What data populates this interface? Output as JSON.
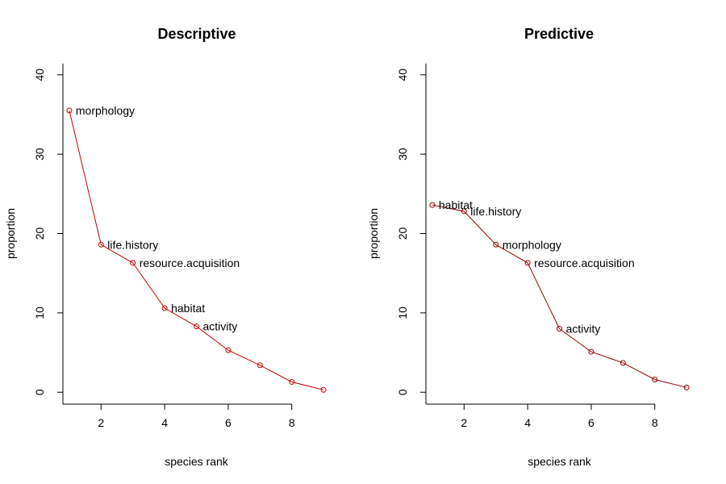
{
  "chart_data": [
    {
      "type": "line",
      "title": "Descriptive",
      "xlabel": "species rank",
      "ylabel": "proportion",
      "xlim": [
        0.8,
        9.2
      ],
      "ylim": [
        -1.5,
        41.5
      ],
      "xticks": [
        2,
        4,
        6,
        8
      ],
      "yticks": [
        0,
        10,
        20,
        30,
        40
      ],
      "grid": false,
      "series_color": "#cc0000",
      "x": [
        1,
        2,
        3,
        4,
        5,
        6,
        7,
        8,
        9
      ],
      "y": [
        35.5,
        18.6,
        16.3,
        10.6,
        8.3,
        5.3,
        3.4,
        1.3,
        0.3
      ],
      "labels": [
        "morphology",
        "life.history",
        "resource.acquisition",
        "habitat",
        "activity",
        "",
        "",
        "",
        ""
      ]
    },
    {
      "type": "line",
      "title": "Predictive",
      "xlabel": "species rank",
      "ylabel": "proportion",
      "xlim": [
        0.8,
        9.2
      ],
      "ylim": [
        -1.5,
        41.5
      ],
      "xticks": [
        2,
        4,
        6,
        8
      ],
      "yticks": [
        0,
        10,
        20,
        30,
        40
      ],
      "grid": false,
      "series_color": "#990000",
      "x": [
        1,
        2,
        3,
        4,
        5,
        6,
        7,
        8,
        9
      ],
      "y": [
        23.6,
        22.8,
        18.6,
        16.3,
        8.0,
        5.1,
        3.7,
        1.6,
        0.6
      ],
      "labels": [
        "habitat",
        "life.history",
        "morphology",
        "resource.acquisition",
        "activity",
        "",
        "",
        "",
        ""
      ]
    }
  ]
}
